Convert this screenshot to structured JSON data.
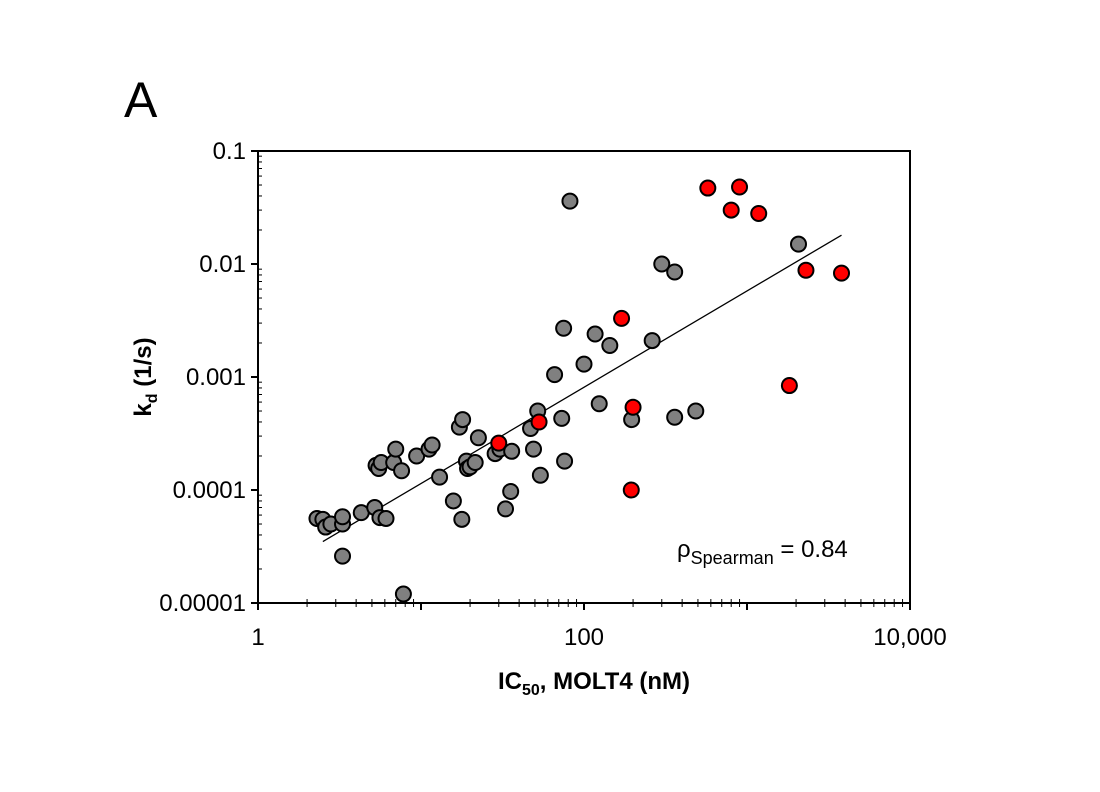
{
  "chart_data": {
    "panel_label": "A",
    "type": "scatter",
    "x_scale": "log",
    "y_scale": "log",
    "xlim": [
      1,
      10000
    ],
    "ylim": [
      1e-05,
      0.1
    ],
    "xlabel": {
      "main": "IC",
      "sub": "50",
      "rest": ", MOLT4 (nM)"
    },
    "ylabel": {
      "main": "k",
      "sub": "d",
      "rest": " (1/s)"
    },
    "x_ticks": [
      {
        "value": 1,
        "label": "1"
      },
      {
        "value": 100,
        "label": "100"
      },
      {
        "value": 10000,
        "label": "10,000"
      }
    ],
    "y_ticks": [
      {
        "value": 0.1,
        "label": "0.1"
      },
      {
        "value": 0.01,
        "label": "0.01"
      },
      {
        "value": 0.001,
        "label": "0.001"
      },
      {
        "value": 0.0001,
        "label": "0.0001"
      },
      {
        "value": 1e-05,
        "label": "0.00001"
      }
    ],
    "annotation": {
      "symbol": "ρ",
      "sub": "Spearman",
      "rest": " = 0.84"
    },
    "trendline": {
      "x": [
        2.5,
        3800
      ],
      "y": [
        3.5e-05,
        0.018
      ]
    },
    "grid": false,
    "series": [
      {
        "color": "#808080",
        "points": [
          [
            2.3,
            5.6e-05
          ],
          [
            2.5,
            5.5e-05
          ],
          [
            2.6,
            4.7e-05
          ],
          [
            2.8,
            5e-05
          ],
          [
            3.3,
            5e-05
          ],
          [
            3.3,
            5.8e-05
          ],
          [
            3.3,
            2.6e-05
          ],
          [
            4.3,
            6.3e-05
          ],
          [
            5.2,
            7e-05
          ],
          [
            5.3,
            0.000165
          ],
          [
            5.5,
            0.000155
          ],
          [
            5.6,
            5.7e-05
          ],
          [
            5.7,
            0.000175
          ],
          [
            6.1,
            5.6e-05
          ],
          [
            6.8,
            0.000175
          ],
          [
            7.0,
            0.00023
          ],
          [
            7.6,
            0.000148
          ],
          [
            7.8,
            1.2e-05
          ],
          [
            9.4,
            0.0002
          ],
          [
            11.2,
            0.00023
          ],
          [
            11.7,
            0.00025
          ],
          [
            13.0,
            0.00013
          ],
          [
            15.8,
            8e-05
          ],
          [
            17.2,
            0.00036
          ],
          [
            18.0,
            0.00042
          ],
          [
            17.8,
            5.5e-05
          ],
          [
            19.0,
            0.00018
          ],
          [
            19.3,
            0.000155
          ],
          [
            20.0,
            0.00016
          ],
          [
            21.5,
            0.000175
          ],
          [
            22.5,
            0.00029
          ],
          [
            28.5,
            0.00021
          ],
          [
            30.5,
            0.00023
          ],
          [
            33.0,
            6.8e-05
          ],
          [
            35.5,
            9.7e-05
          ],
          [
            36.0,
            0.00022
          ],
          [
            47.0,
            0.00035
          ],
          [
            49.0,
            0.00023
          ],
          [
            52.0,
            0.0005
          ],
          [
            54.0,
            0.000135
          ],
          [
            66.0,
            0.00105
          ],
          [
            73.0,
            0.00043
          ],
          [
            75.0,
            0.0027
          ],
          [
            76.0,
            0.00018
          ],
          [
            82.0,
            0.036
          ],
          [
            100.0,
            0.0013
          ],
          [
            117.0,
            0.0024
          ],
          [
            124.0,
            0.00058
          ],
          [
            144.0,
            0.0019
          ],
          [
            196.0,
            0.00042
          ],
          [
            262.0,
            0.0021
          ],
          [
            300.0,
            0.01
          ],
          [
            360.0,
            0.0085
          ],
          [
            360.0,
            0.00044
          ],
          [
            485.0,
            0.0005
          ],
          [
            2070.0,
            0.015
          ]
        ]
      },
      {
        "color": "#ff0000",
        "points": [
          [
            30.0,
            0.00026
          ],
          [
            53.0,
            0.0004
          ],
          [
            170.0,
            0.0033
          ],
          [
            195.0,
            0.0001
          ],
          [
            200.0,
            0.00054
          ],
          [
            575.0,
            0.047
          ],
          [
            800.0,
            0.03
          ],
          [
            900.0,
            0.048
          ],
          [
            1180.0,
            0.028
          ],
          [
            1820.0,
            0.00084
          ],
          [
            2300.0,
            0.0088
          ],
          [
            3800.0,
            0.0083
          ]
        ]
      }
    ]
  }
}
